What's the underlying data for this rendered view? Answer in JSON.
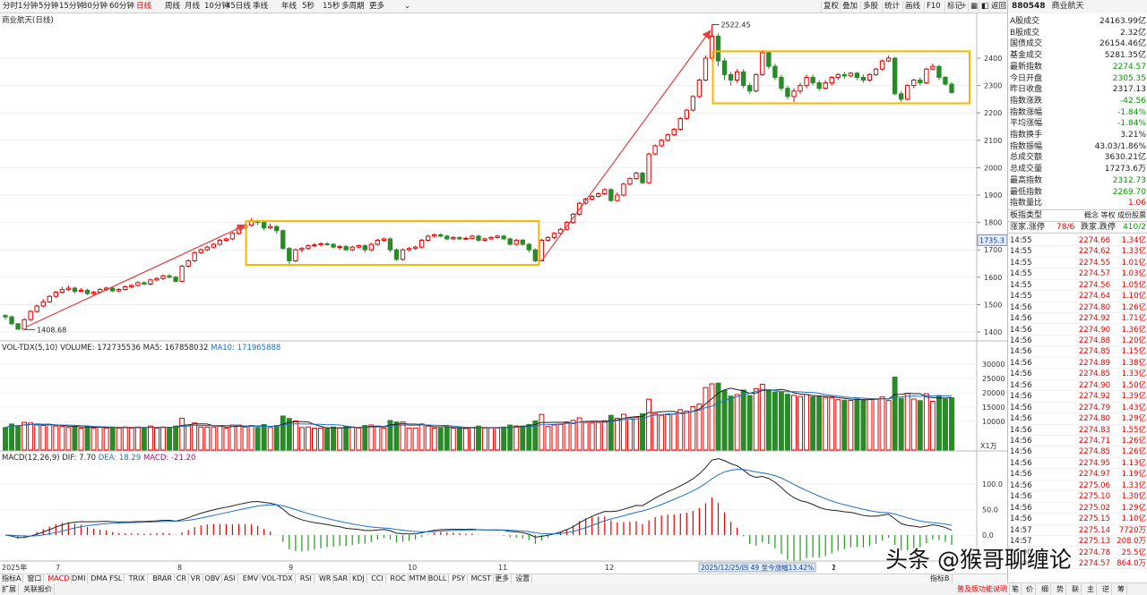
{
  "toolbar": {
    "timeframes": [
      "分时",
      "1分钟",
      "5分钟",
      "15分钟",
      "30分钟",
      "60分钟",
      "日线",
      "周线",
      "月线",
      "10分钟",
      "45日线",
      "季线",
      "年线",
      "5秒",
      "15秒",
      "多周期",
      "更多"
    ],
    "active_timeframe": "日线",
    "right_buttons": [
      "复权",
      "叠加",
      "多股",
      "统计",
      "画线",
      "F10",
      "标记"
    ],
    "icons": [
      "plus-icon",
      "grid-icon",
      "chevron-left-icon",
      "back-icon"
    ],
    "return_label": "返回"
  },
  "symbol": {
    "code": "880548",
    "name": "商业航天"
  },
  "main_chart": {
    "title": "商业航天(日线)",
    "y_ticks": [
      "2400",
      "2300",
      "2200",
      "2100",
      "2000",
      "1900",
      "1800",
      "1700",
      "1600",
      "1500",
      "1400"
    ],
    "high_label": "2522.45",
    "low_label": "1408.68",
    "current_price_tag": "1735.3",
    "box_color": "#f5b800",
    "arrow_color": "#e04040",
    "up_color": "#e60000",
    "down_color": "#2a8a2a"
  },
  "chart_data": {
    "type": "candlestick",
    "ylim": [
      1400,
      2520
    ],
    "high": 2522.45,
    "low": 1408.68,
    "candles": [
      [
        1460,
        1455,
        1465,
        1445
      ],
      [
        1455,
        1430,
        1460,
        1425
      ],
      [
        1430,
        1410,
        1432,
        1409
      ],
      [
        1410,
        1445,
        1450,
        1408.68
      ],
      [
        1445,
        1475,
        1480,
        1440
      ],
      [
        1475,
        1495,
        1500,
        1470
      ],
      [
        1495,
        1510,
        1520,
        1490
      ],
      [
        1510,
        1530,
        1535,
        1505
      ],
      [
        1530,
        1545,
        1550,
        1525
      ],
      [
        1545,
        1555,
        1565,
        1540
      ],
      [
        1555,
        1560,
        1570,
        1550
      ],
      [
        1560,
        1548,
        1565,
        1540
      ],
      [
        1548,
        1552,
        1560,
        1545
      ],
      [
        1552,
        1540,
        1558,
        1535
      ],
      [
        1540,
        1545,
        1550,
        1535
      ],
      [
        1545,
        1555,
        1560,
        1540
      ],
      [
        1555,
        1560,
        1565,
        1550
      ],
      [
        1560,
        1550,
        1565,
        1545
      ],
      [
        1550,
        1555,
        1560,
        1545
      ],
      [
        1555,
        1565,
        1570,
        1550
      ],
      [
        1565,
        1570,
        1575,
        1560
      ],
      [
        1570,
        1580,
        1585,
        1565
      ],
      [
        1580,
        1575,
        1585,
        1570
      ],
      [
        1575,
        1590,
        1595,
        1570
      ],
      [
        1590,
        1595,
        1600,
        1585
      ],
      [
        1595,
        1605,
        1610,
        1590
      ],
      [
        1605,
        1600,
        1612,
        1595
      ],
      [
        1600,
        1585,
        1605,
        1580
      ],
      [
        1585,
        1640,
        1645,
        1582
      ],
      [
        1640,
        1660,
        1665,
        1635
      ],
      [
        1660,
        1690,
        1695,
        1655
      ],
      [
        1690,
        1700,
        1705,
        1685
      ],
      [
        1700,
        1710,
        1715,
        1695
      ],
      [
        1710,
        1720,
        1725,
        1705
      ],
      [
        1720,
        1735,
        1740,
        1715
      ],
      [
        1735,
        1740,
        1745,
        1730
      ],
      [
        1740,
        1760,
        1765,
        1735
      ],
      [
        1760,
        1780,
        1785,
        1755
      ],
      [
        1780,
        1790,
        1795,
        1775
      ],
      [
        1790,
        1805,
        1815,
        1785
      ],
      [
        1805,
        1800,
        1810,
        1790
      ],
      [
        1800,
        1780,
        1805,
        1770
      ],
      [
        1780,
        1785,
        1795,
        1775
      ],
      [
        1785,
        1770,
        1790,
        1760
      ],
      [
        1770,
        1705,
        1775,
        1700
      ],
      [
        1705,
        1660,
        1710,
        1640
      ],
      [
        1660,
        1700,
        1705,
        1655
      ],
      [
        1700,
        1705,
        1710,
        1690
      ],
      [
        1705,
        1715,
        1720,
        1700
      ],
      [
        1715,
        1718,
        1725,
        1710
      ],
      [
        1718,
        1722,
        1728,
        1712
      ],
      [
        1722,
        1720,
        1728,
        1715
      ],
      [
        1720,
        1710,
        1725,
        1705
      ],
      [
        1710,
        1712,
        1718,
        1700
      ],
      [
        1712,
        1700,
        1718,
        1695
      ],
      [
        1700,
        1710,
        1715,
        1695
      ],
      [
        1710,
        1715,
        1720,
        1705
      ],
      [
        1715,
        1700,
        1720,
        1690
      ],
      [
        1700,
        1720,
        1725,
        1695
      ],
      [
        1720,
        1735,
        1740,
        1715
      ],
      [
        1735,
        1740,
        1745,
        1730
      ],
      [
        1740,
        1700,
        1745,
        1690
      ],
      [
        1700,
        1665,
        1705,
        1660
      ],
      [
        1665,
        1700,
        1705,
        1660
      ],
      [
        1700,
        1705,
        1710,
        1695
      ],
      [
        1705,
        1710,
        1715,
        1700
      ],
      [
        1710,
        1735,
        1740,
        1705
      ],
      [
        1735,
        1750,
        1755,
        1730
      ],
      [
        1750,
        1755,
        1760,
        1745
      ],
      [
        1755,
        1750,
        1760,
        1745
      ],
      [
        1750,
        1740,
        1755,
        1735
      ],
      [
        1740,
        1745,
        1750,
        1735
      ],
      [
        1745,
        1740,
        1750,
        1735
      ],
      [
        1740,
        1742,
        1748,
        1735
      ],
      [
        1742,
        1750,
        1755,
        1738
      ],
      [
        1750,
        1735,
        1755,
        1730
      ],
      [
        1735,
        1740,
        1745,
        1730
      ],
      [
        1740,
        1745,
        1750,
        1735
      ],
      [
        1745,
        1750,
        1755,
        1740
      ],
      [
        1750,
        1740,
        1755,
        1735
      ],
      [
        1740,
        1720,
        1745,
        1715
      ],
      [
        1720,
        1735,
        1740,
        1715
      ],
      [
        1735,
        1720,
        1740,
        1715
      ],
      [
        1720,
        1700,
        1725,
        1690
      ],
      [
        1700,
        1660,
        1705,
        1655
      ],
      [
        1660,
        1735,
        1740,
        1660
      ],
      [
        1735,
        1745,
        1750,
        1730
      ],
      [
        1745,
        1760,
        1765,
        1740
      ],
      [
        1760,
        1775,
        1780,
        1755
      ],
      [
        1775,
        1800,
        1805,
        1770
      ],
      [
        1800,
        1830,
        1835,
        1795
      ],
      [
        1830,
        1870,
        1875,
        1825
      ],
      [
        1870,
        1885,
        1890,
        1865
      ],
      [
        1885,
        1895,
        1900,
        1880
      ],
      [
        1895,
        1905,
        1910,
        1890
      ],
      [
        1905,
        1920,
        1925,
        1900
      ],
      [
        1920,
        1880,
        1925,
        1875
      ],
      [
        1880,
        1900,
        1910,
        1875
      ],
      [
        1900,
        1940,
        1945,
        1895
      ],
      [
        1940,
        1960,
        1965,
        1935
      ],
      [
        1960,
        1980,
        1985,
        1955
      ],
      [
        1980,
        1945,
        1985,
        1940
      ],
      [
        1945,
        2050,
        2055,
        1940
      ],
      [
        2050,
        2080,
        2085,
        2045
      ],
      [
        2080,
        2100,
        2105,
        2075
      ],
      [
        2100,
        2120,
        2125,
        2095
      ],
      [
        2120,
        2140,
        2145,
        2115
      ],
      [
        2140,
        2180,
        2185,
        2135
      ],
      [
        2180,
        2210,
        2215,
        2175
      ],
      [
        2210,
        2260,
        2265,
        2205
      ],
      [
        2260,
        2320,
        2325,
        2255
      ],
      [
        2320,
        2400,
        2410,
        2315
      ],
      [
        2400,
        2480,
        2522.45,
        2395
      ],
      [
        2480,
        2390,
        2490,
        2370
      ],
      [
        2390,
        2340,
        2400,
        2320
      ],
      [
        2340,
        2320,
        2350,
        2300
      ],
      [
        2320,
        2350,
        2360,
        2310
      ],
      [
        2350,
        2300,
        2360,
        2290
      ],
      [
        2300,
        2280,
        2310,
        2270
      ],
      [
        2280,
        2340,
        2345,
        2275
      ],
      [
        2340,
        2420,
        2430,
        2335
      ],
      [
        2420,
        2370,
        2425,
        2360
      ],
      [
        2370,
        2330,
        2380,
        2320
      ],
      [
        2330,
        2290,
        2340,
        2280
      ],
      [
        2290,
        2260,
        2300,
        2250
      ],
      [
        2260,
        2280,
        2290,
        2240
      ],
      [
        2280,
        2300,
        2310,
        2270
      ],
      [
        2300,
        2330,
        2340,
        2290
      ],
      [
        2330,
        2310,
        2340,
        2300
      ],
      [
        2310,
        2290,
        2320,
        2280
      ],
      [
        2290,
        2310,
        2320,
        2285
      ],
      [
        2310,
        2330,
        2335,
        2300
      ],
      [
        2330,
        2340,
        2345,
        2320
      ],
      [
        2340,
        2335,
        2350,
        2325
      ],
      [
        2335,
        2345,
        2350,
        2330
      ],
      [
        2345,
        2330,
        2350,
        2320
      ],
      [
        2330,
        2320,
        2340,
        2310
      ],
      [
        2320,
        2340,
        2345,
        2315
      ],
      [
        2340,
        2360,
        2365,
        2335
      ],
      [
        2360,
        2390,
        2395,
        2355
      ],
      [
        2390,
        2400,
        2410,
        2385
      ],
      [
        2400,
        2270,
        2405,
        2265
      ],
      [
        2270,
        2250,
        2280,
        2240
      ],
      [
        2250,
        2300,
        2305,
        2245
      ],
      [
        2300,
        2320,
        2325,
        2290
      ],
      [
        2320,
        2310,
        2330,
        2300
      ],
      [
        2310,
        2360,
        2365,
        2305
      ],
      [
        2360,
        2370,
        2380,
        2355
      ],
      [
        2370,
        2330,
        2375,
        2320
      ],
      [
        2330,
        2305,
        2335,
        2300
      ],
      [
        2305,
        2274.57,
        2312.73,
        2269.7
      ]
    ],
    "volume_title": "VOL-TDX(5,10)",
    "volume_label": "VOLUME: 172735536",
    "ma5_label": "MA5: 167858032",
    "ma10_label": "MA10: 171965888",
    "vol_ticks": [
      "30000",
      "25000",
      "20000",
      "15000",
      "10000"
    ],
    "vol_unit": "X1万",
    "macd_title": "MACD(12,26,9)",
    "dif_label": "DIF: 7.70",
    "dea_label": "DEA: 18.29",
    "macd_label": "MACD: -21.20",
    "macd_ticks": [
      "100.0",
      "50.0",
      "0.0"
    ]
  },
  "x_axis": {
    "labels": [
      "2025年",
      "7",
      "8",
      "9",
      "10",
      "11",
      "12",
      "1",
      "2"
    ],
    "annotation": "2025/12/25/四 49 至今涨幅13.42%"
  },
  "quote_panel": [
    {
      "k": "A股成交",
      "v": "24163.99亿",
      "c": "dark"
    },
    {
      "k": "B股成交",
      "v": "2.32亿",
      "c": "dark"
    },
    {
      "k": "国债成交",
      "v": "26154.46亿",
      "c": "dark"
    },
    {
      "k": "基金成交",
      "v": "5281.35亿",
      "c": "dark"
    },
    {
      "k": "最新指数",
      "v": "2274.57",
      "c": "green"
    },
    {
      "k": "今日开盘",
      "v": "2305.35",
      "c": "green"
    },
    {
      "k": "昨日收盘",
      "v": "2317.13",
      "c": "dark"
    },
    {
      "k": "指数涨跌",
      "v": "-42.56",
      "c": "green"
    },
    {
      "k": "指数涨幅",
      "v": "-1.84%",
      "c": "green"
    },
    {
      "k": "平均涨幅",
      "v": "-1.84%",
      "c": "green"
    },
    {
      "k": "指数换手",
      "v": "3.21%",
      "c": "dark"
    },
    {
      "k": "指数振幅",
      "v": "43.03/1.86%",
      "c": "dark"
    },
    {
      "k": "总成交额",
      "v": "3630.21亿",
      "c": "dark"
    },
    {
      "k": "总成交量",
      "v": "17273.6万",
      "c": "dark"
    },
    {
      "k": "最高指数",
      "v": "2312.73",
      "c": "green"
    },
    {
      "k": "最低指数",
      "v": "2269.70",
      "c": "green"
    },
    {
      "k": "指数量比",
      "v": "1.06",
      "c": "red"
    }
  ],
  "sector": {
    "k": "板指类型",
    "v": "概念 等权 成份股票"
  },
  "breadth": {
    "up_label": "涨家.涨停",
    "up_value": "78/6",
    "down_label": "跌家.跌停",
    "down_value": "410/2"
  },
  "ticks": [
    [
      "14:55",
      "2274.66",
      "1.34亿"
    ],
    [
      "14:55",
      "2274.62",
      "1.33亿"
    ],
    [
      "14:55",
      "2274.55",
      "1.01亿"
    ],
    [
      "14:55",
      "2274.57",
      "1.03亿"
    ],
    [
      "14:55",
      "2274.56",
      "1.05亿"
    ],
    [
      "14:55",
      "2274.64",
      "1.10亿"
    ],
    [
      "14:56",
      "2274.80",
      "1.26亿"
    ],
    [
      "14:56",
      "2274.92",
      "1.71亿"
    ],
    [
      "14:56",
      "2274.90",
      "1.36亿"
    ],
    [
      "14:56",
      "2274.88",
      "1.20亿"
    ],
    [
      "14:56",
      "2274.85",
      "1.15亿"
    ],
    [
      "14:56",
      "2274.89",
      "1.38亿"
    ],
    [
      "14:56",
      "2274.85",
      "1.33亿"
    ],
    [
      "14:56",
      "2274.90",
      "1.50亿"
    ],
    [
      "14:56",
      "2274.92",
      "1.39亿"
    ],
    [
      "14:56",
      "2274.79",
      "1.43亿"
    ],
    [
      "14:56",
      "2274.80",
      "1.29亿"
    ],
    [
      "14:56",
      "2274.83",
      "1.55亿"
    ],
    [
      "14:56",
      "2274.71",
      "1.26亿"
    ],
    [
      "14:56",
      "2274.85",
      "1.26亿"
    ],
    [
      "14:56",
      "2274.95",
      "1.13亿"
    ],
    [
      "14:56",
      "2274.97",
      "1.19亿"
    ],
    [
      "14:56",
      "2275.06",
      "1.33亿"
    ],
    [
      "14:56",
      "2275.10",
      "1.30亿"
    ],
    [
      "14:56",
      "2275.02",
      "1.29亿"
    ],
    [
      "14:56",
      "2275.15",
      "1.10亿"
    ],
    [
      "14:57",
      "2275.14",
      "7720万"
    ],
    [
      "14:57",
      "2275.13",
      "208.0万"
    ],
    [
      "15:00",
      "2274.78",
      "25.5亿"
    ],
    [
      "15:00",
      "2274.57",
      "864.0万"
    ]
  ],
  "indicator_tabs": [
    "指标A",
    "窗口",
    "MACD",
    "DMI",
    "DMA",
    "FSL",
    "TRIX",
    "BRAR",
    "CR",
    "VR",
    "OBV",
    "ASI",
    "EMV",
    "VOL-TDX",
    "RSI",
    "WR",
    "SAR",
    "KDJ",
    "CCI",
    "ROC",
    "MTM",
    "BOLL",
    "PSY",
    "MCST",
    "更多",
    "设置"
  ],
  "active_tab": "MACD",
  "bottom_tabs": [
    "扩展",
    "关联报价"
  ],
  "bottom_right": [
    "普及版功能说明",
    "笔",
    "价",
    "细",
    "势",
    "联",
    "主",
    "逆",
    "筹"
  ],
  "side_tab": "指标B",
  "watermark": "头条 @猴哥聊缠论"
}
